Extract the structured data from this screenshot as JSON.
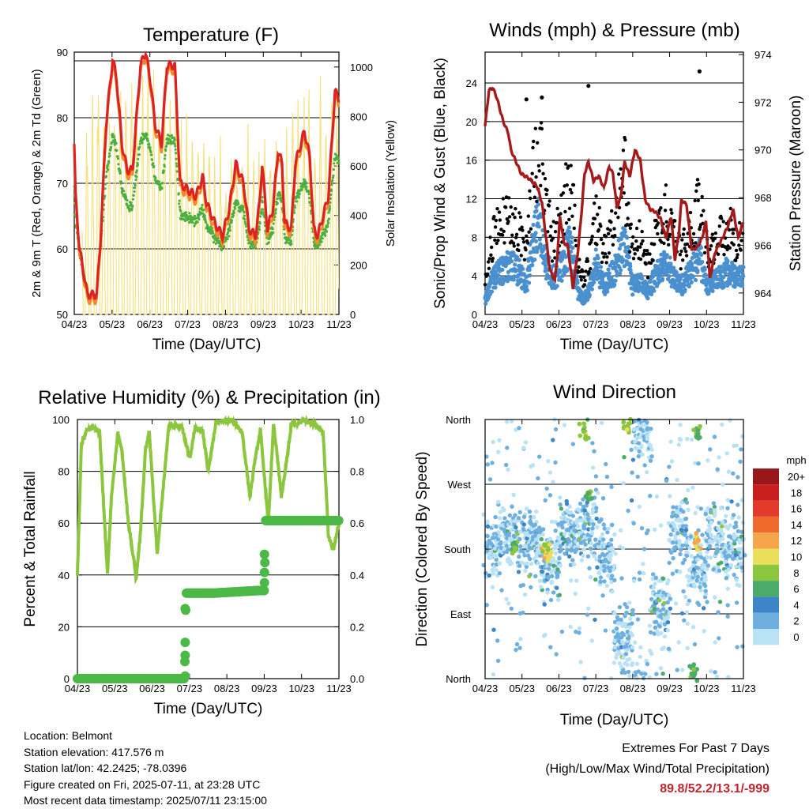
{
  "x_ticks": [
    "04/23",
    "05/23",
    "06/23",
    "07/23",
    "08/23",
    "09/23",
    "10/23",
    "11/23"
  ],
  "x_title": "Time (Day/UTC)",
  "colors": {
    "temp_2m": "#dd2222",
    "temp_9m": "#f18a2c",
    "dewpoint": "#4caf3f",
    "insolation": "#f5e07a",
    "wind": "#4a90cf",
    "gust": "#000000",
    "pressure": "#a31b1b",
    "humidity": "#8cc63f",
    "rain": "#4cb846",
    "extremes": "#c0262d"
  },
  "footer": {
    "location": "Location: Belmont",
    "elevation": "Station elevation: 417.576 m",
    "latlon": "Station lat/lon: 42.2425; -78.0396",
    "created": "Figure created on Fri, 2025-07-11, at 23:28 UTC",
    "recent": "Most recent data timestamp: 2025/07/11 23:15:00",
    "extremes_title": "Extremes For Past 7 Days",
    "extremes_sub": "(High/Low/Max Wind/Total Precipitation)",
    "extremes_value": "89.8/52.2/13.1/-999"
  },
  "chart_data": [
    {
      "type": "line",
      "title": "Temperature (F)",
      "xlabel": "Time (Day/UTC)",
      "ylabel": "2m & 9m T (Red, Orange) & 2m Td (Green)",
      "ylabel_right": "Solar Insolation (Yellow)",
      "ylim": [
        50,
        90
      ],
      "ylim_right": [
        0,
        1060
      ],
      "yticks": [
        "50",
        "60",
        "70",
        "80",
        "90"
      ],
      "yticks_right": [
        "0",
        "200",
        "400",
        "600",
        "800",
        "1000"
      ],
      "series": [
        {
          "name": "2m T",
          "x": [
            0,
            0.05,
            0.2,
            0.5,
            0.85,
            1,
            1.2,
            1.45,
            1.6,
            1.8,
            2,
            2.2,
            2.5,
            2.7,
            2.9,
            3.05,
            3.3,
            3.5,
            3.8,
            4,
            4.3,
            4.6,
            4.85,
            5,
            5.3,
            5.6,
            5.85,
            6.1,
            6.4,
            6.6,
            6.85,
            7,
            7.1,
            7.3,
            7.5,
            7.7,
            7.85,
            7.95,
            8.2,
            8.35,
            8.7,
            8.9,
            9.05,
            9.2,
            9.6,
            9.85,
            10
          ],
          "values": [
            76,
            68,
            60,
            53,
            53,
            62,
            79,
            89,
            86,
            76,
            72,
            72,
            88,
            90,
            85,
            79,
            76,
            88,
            88,
            70,
            69,
            68,
            71,
            67,
            64,
            62,
            66,
            73,
            70,
            63,
            62,
            67,
            73,
            63,
            66,
            75,
            73,
            64,
            63,
            73,
            78,
            74,
            63,
            62,
            68,
            84,
            83
          ]
        },
        {
          "name": "Solar insolation",
          "x": [
            0.4,
            1.4,
            2.4,
            3.4,
            4.4,
            5.4,
            6.4,
            7.4,
            8.4,
            9.4
          ],
          "values": [
            850,
            1050,
            1040,
            1020,
            900,
            760,
            800,
            700,
            1000,
            1040
          ]
        }
      ]
    },
    {
      "type": "scatter",
      "title": "Winds (mph) & Pressure (mb)",
      "xlabel": "Time (Day/UTC)",
      "ylabel": "Sonic/Prop Wind & Gust (Blue, Black)",
      "ylabel_right": "Station Pressure (Maroon)",
      "ylim": [
        0,
        27.2
      ],
      "ylim_right": [
        963.1,
        974.1
      ],
      "yticks": [
        "0",
        "4",
        "8",
        "12",
        "16",
        "20",
        "24"
      ],
      "yticks_right": [
        "964",
        "966",
        "968",
        "970",
        "972",
        "974"
      ],
      "series": [
        {
          "name": "Station pressure",
          "x": [
            0,
            0.15,
            0.3,
            0.45,
            0.7,
            0.9,
            1,
            1.2,
            1.4,
            1.7,
            2,
            2.2,
            2.35,
            2.5,
            2.7,
            2.8,
            2.9,
            3.05,
            3.2,
            3.4,
            3.6,
            3.75,
            3.85,
            4,
            4.2,
            4.4,
            4.6,
            4.8,
            4.95,
            5.1,
            5.25,
            5.4,
            5.6,
            5.8,
            6,
            6.2,
            6.4,
            6.6,
            6.8,
            7,
            7.2,
            7.35,
            7.5,
            7.6,
            7.8,
            8,
            8.2,
            8.4,
            8.55,
            8.7,
            8.9,
            9.1,
            9.4,
            9.6,
            9.8,
            10
          ],
          "values": [
            971,
            972.5,
            972.6,
            972.2,
            971.2,
            970.7,
            970,
            969.5,
            969,
            968.8,
            968.5,
            967.8,
            966.4,
            965,
            964.5,
            965.6,
            967.2,
            966.1,
            966,
            964.2,
            965.8,
            967.6,
            969,
            969.5,
            968.7,
            968.9,
            968.4,
            969.3,
            969,
            967.6,
            968,
            969.5,
            968.9,
            970,
            969.6,
            967.9,
            967.5,
            967.4,
            967.1,
            966.3,
            967.2,
            965.4,
            966.5,
            967.9,
            967.7,
            965.8,
            965.9,
            966.3,
            967,
            964.6,
            965.7,
            966.1,
            966.8,
            967.5,
            966.3,
            967
          ]
        },
        {
          "name": "Max gust",
          "x": [
            1.6,
            2.2,
            4,
            8.3
          ],
          "values": [
            22.3,
            22.5,
            23.7,
            25.2
          ]
        }
      ]
    },
    {
      "type": "line",
      "title": "Relative Humidity (%) & Precipitation (in)",
      "xlabel": "Time (Day/UTC)",
      "ylabel": "Percent & Total Rainfall",
      "ylim": [
        0,
        100
      ],
      "ylim_right": [
        0,
        1
      ],
      "yticks": [
        "0",
        "20",
        "40",
        "60",
        "80",
        "100"
      ],
      "yticks_right": [
        "0.0",
        "0.2",
        "0.4",
        "0.6",
        "0.8",
        "1.0"
      ],
      "series": [
        {
          "name": "Relative humidity",
          "x": [
            0,
            0.15,
            0.35,
            0.6,
            0.85,
            1.15,
            1.3,
            1.55,
            1.7,
            1.95,
            2.25,
            2.4,
            2.6,
            2.75,
            3.05,
            3.5,
            4,
            4.3,
            4.5,
            4.8,
            5,
            5.3,
            5.9,
            6.3,
            6.6,
            6.8,
            7,
            7.3,
            7.5,
            7.6,
            7.8,
            8.2,
            8.4,
            8.6,
            8.8,
            9.1,
            9.4,
            9.6,
            9.8,
            10
          ],
          "values": [
            40,
            90,
            96,
            97,
            95,
            40,
            70,
            95,
            88,
            60,
            39,
            55,
            88,
            95,
            48,
            98,
            97,
            85,
            97,
            95,
            80,
            99,
            100,
            95,
            70,
            85,
            96,
            60,
            98,
            90,
            70,
            99,
            98,
            100,
            99,
            98,
            95,
            55,
            50,
            60
          ]
        },
        {
          "name": "Total rainfall",
          "x": [
            0,
            4.1,
            4.15,
            5.2,
            6.9,
            7.15,
            7.2,
            10
          ],
          "values": [
            0,
            0,
            0.33,
            0.33,
            0.34,
            0.34,
            0.61,
            0.61
          ]
        }
      ]
    },
    {
      "type": "scatter",
      "title": "Wind Direction",
      "xlabel": "Time (Day/UTC)",
      "ylabel": "Direction (Colored By Speed)",
      "yticks": [
        "North",
        "East",
        "South",
        "West",
        "North"
      ],
      "colorbar": {
        "title": "mph",
        "labels": [
          "20+",
          "18",
          "16",
          "14",
          "12",
          "10",
          "8",
          "6",
          "4",
          "2",
          "0"
        ],
        "colors": [
          "#99161a",
          "#c8201e",
          "#e23b2b",
          "#ef6a2d",
          "#f5a54a",
          "#e9df5b",
          "#8cc63f",
          "#4aab6b",
          "#3d85c6",
          "#6eafe0",
          "#b9e2f5"
        ]
      }
    }
  ]
}
